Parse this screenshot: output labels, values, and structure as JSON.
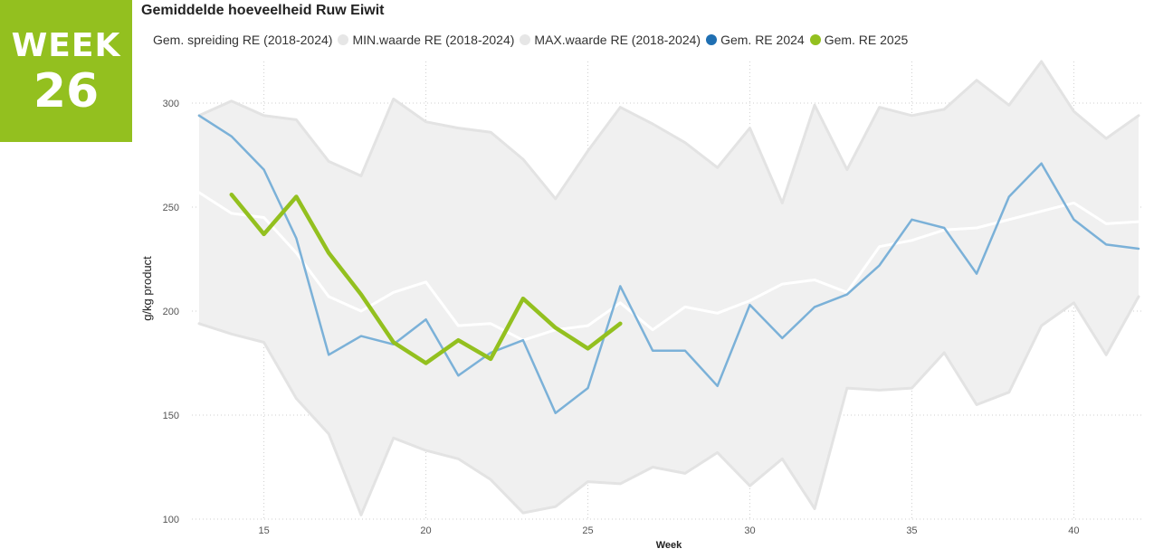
{
  "badge": {
    "label": "WEEK",
    "number": "26",
    "color": "#93c01f"
  },
  "chart_data": {
    "type": "line",
    "title": "Gemiddelde hoeveelheid Ruw Eiwit",
    "xlabel": "Week",
    "ylabel": "g/kg product",
    "xlim": [
      13,
      42
    ],
    "ylim": [
      100,
      320
    ],
    "xticks": [
      15,
      20,
      25,
      30,
      35,
      40
    ],
    "yticks": [
      100,
      150,
      200,
      250,
      300
    ],
    "grid": true,
    "legend_position": "top",
    "legend": [
      {
        "name": "Gem. spreiding RE (2018-2024)",
        "color": ""
      },
      {
        "name": "MIN.waarde RE (2018-2024)",
        "color": "#e6e6e6"
      },
      {
        "name": "MAX.waarde RE (2018-2024)",
        "color": "#e6e6e6"
      },
      {
        "name": "Gem. RE 2024",
        "color": "#1f6fb2"
      },
      {
        "name": "Gem. RE 2025",
        "color": "#93c01f"
      }
    ],
    "x": [
      13,
      14,
      15,
      16,
      17,
      18,
      19,
      20,
      21,
      22,
      23,
      24,
      25,
      26,
      27,
      28,
      29,
      30,
      31,
      32,
      33,
      34,
      35,
      36,
      37,
      38,
      39,
      40,
      41,
      42
    ],
    "series": [
      {
        "name": "MIN.waarde RE (2018-2024)",
        "color": "#e3e3e3",
        "values": [
          194,
          189,
          185,
          158,
          141,
          102,
          139,
          133,
          129,
          119,
          103,
          106,
          118,
          117,
          125,
          122,
          132,
          116,
          129,
          105,
          163,
          162,
          163,
          180,
          155,
          161,
          193,
          204,
          179,
          207
        ]
      },
      {
        "name": "MAX.waarde RE (2018-2024)",
        "color": "#e3e3e3",
        "values": [
          294,
          301,
          294,
          292,
          272,
          265,
          302,
          291,
          288,
          286,
          273,
          254,
          277,
          298,
          290,
          281,
          269,
          288,
          252,
          299,
          268,
          298,
          294,
          297,
          311,
          299,
          320,
          296,
          283,
          294
        ]
      },
      {
        "name": "Gem. spreiding RE (2018-2024)",
        "color": "#ffffff",
        "values": [
          257,
          247,
          245,
          228,
          207,
          200,
          209,
          214,
          193,
          194,
          186,
          191,
          193,
          204,
          191,
          202,
          199,
          205,
          213,
          215,
          209,
          231,
          234,
          239,
          240,
          244,
          248,
          252,
          242,
          243
        ]
      },
      {
        "name": "Gem. RE 2024",
        "color": "#7bb1d8",
        "values": [
          294,
          284,
          268,
          235,
          179,
          188,
          184,
          196,
          169,
          180,
          186,
          151,
          163,
          212,
          181,
          181,
          164,
          203,
          187,
          202,
          208,
          222,
          244,
          240,
          218,
          255,
          271,
          244,
          232,
          230
        ]
      },
      {
        "name": "Gem. RE 2025",
        "color": "#93c01f",
        "values": [
          null,
          256,
          237,
          255,
          228,
          208,
          185,
          175,
          186,
          177,
          206,
          192,
          182,
          194,
          null,
          null,
          null,
          null,
          null,
          null,
          null,
          null,
          null,
          null,
          null,
          null,
          null,
          null,
          null,
          null
        ]
      }
    ]
  }
}
